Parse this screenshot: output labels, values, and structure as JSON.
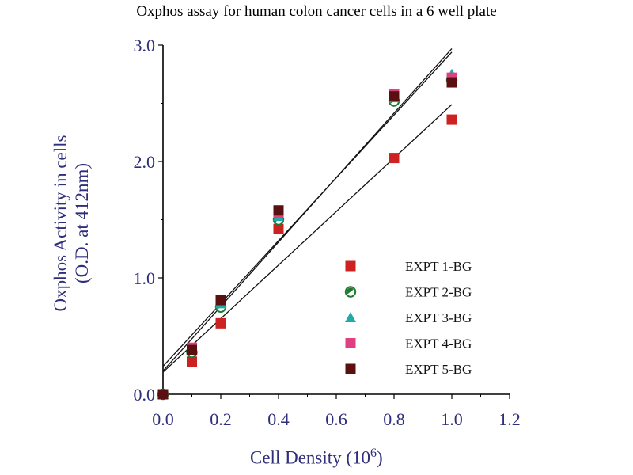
{
  "chart_data": {
    "type": "scatter",
    "title": "Oxphos assay for human colon cancer cells in a 6 well plate",
    "ylabel_line1": "Oxphos Activity in cells",
    "ylabel_line2": "(O.D. at 412nm)",
    "xlabel_text": "Cell Density (10",
    "xlabel_exp": "6",
    "xlabel_close": ")",
    "xlim": [
      0.0,
      1.2
    ],
    "ylim": [
      0.0,
      3.0
    ],
    "x_ticks": [
      "0.0",
      "0.2",
      "0.4",
      "0.6",
      "0.8",
      "1.0",
      "1.2"
    ],
    "y_ticks": [
      "0.0",
      "1.0",
      "2.0",
      "3.0"
    ],
    "x": [
      0.0,
      0.1,
      0.2,
      0.4,
      0.8,
      1.0
    ],
    "series": [
      {
        "name": "EXPT 1-BG",
        "marker": "square",
        "color": "#cc2222",
        "values": [
          0.0,
          0.28,
          0.61,
          1.42,
          2.03,
          2.36
        ]
      },
      {
        "name": "EXPT 2-BG",
        "marker": "circle",
        "color": "#1f7a2f",
        "values": [
          0.0,
          0.36,
          0.75,
          1.5,
          2.52,
          2.7
        ]
      },
      {
        "name": "EXPT 3-BG",
        "marker": "triangle",
        "color": "#22aaaa",
        "values": [
          0.0,
          0.39,
          0.78,
          1.53,
          2.55,
          2.75
        ]
      },
      {
        "name": "EXPT 4-BG",
        "marker": "square",
        "color": "#e0407f",
        "values": [
          0.0,
          0.4,
          0.8,
          1.56,
          2.58,
          2.72
        ]
      },
      {
        "name": "EXPT 5-BG",
        "marker": "square",
        "color": "#5a1010",
        "values": [
          0.0,
          0.38,
          0.81,
          1.58,
          2.56,
          2.68
        ]
      }
    ],
    "fit_lines": [
      {
        "intercept": 0.19,
        "slope": 2.3
      },
      {
        "intercept": 0.24,
        "slope": 2.7
      },
      {
        "intercept": 0.2,
        "slope": 2.77
      }
    ],
    "legend_position": "lower-right",
    "grid": false
  }
}
